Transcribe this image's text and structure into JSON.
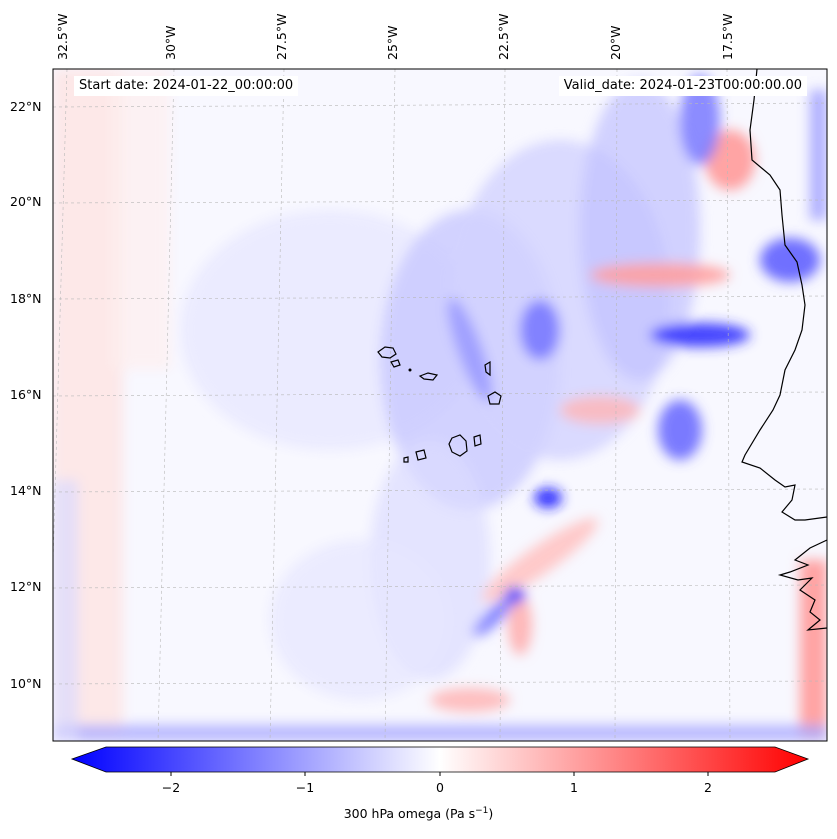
{
  "header": {
    "start_date": "Start date: 2024-01-22_00:00:00",
    "valid_date": "Valid_date: 2024-01-23T00:00:00.00"
  },
  "map": {
    "lon_labels": [
      "32.5°W",
      "30°W",
      "27.5°W",
      "25°W",
      "22.5°W",
      "20°W",
      "17.5°W"
    ],
    "lat_labels": [
      "22°N",
      "20°N",
      "18°N",
      "16°N",
      "14°N",
      "12°N",
      "10°N"
    ],
    "lon_range": [
      -33,
      -15.5
    ],
    "lat_range": [
      8.9,
      22.8
    ],
    "field": "300 hPa omega",
    "coastline": "African coast (Senegal/Mauritania), Cape Verde islands"
  },
  "colorbar": {
    "label_main": "300 hPa omega (Pa s",
    "label_sup": "−1",
    "label_end": ")",
    "ticks": [
      "−2",
      "−1",
      "0",
      "1",
      "2"
    ],
    "range": [
      -2.5,
      2.5
    ],
    "colors": {
      "min": "#0000ff",
      "mid": "#ffffff",
      "max": "#ff0000"
    },
    "extend": "both"
  }
}
